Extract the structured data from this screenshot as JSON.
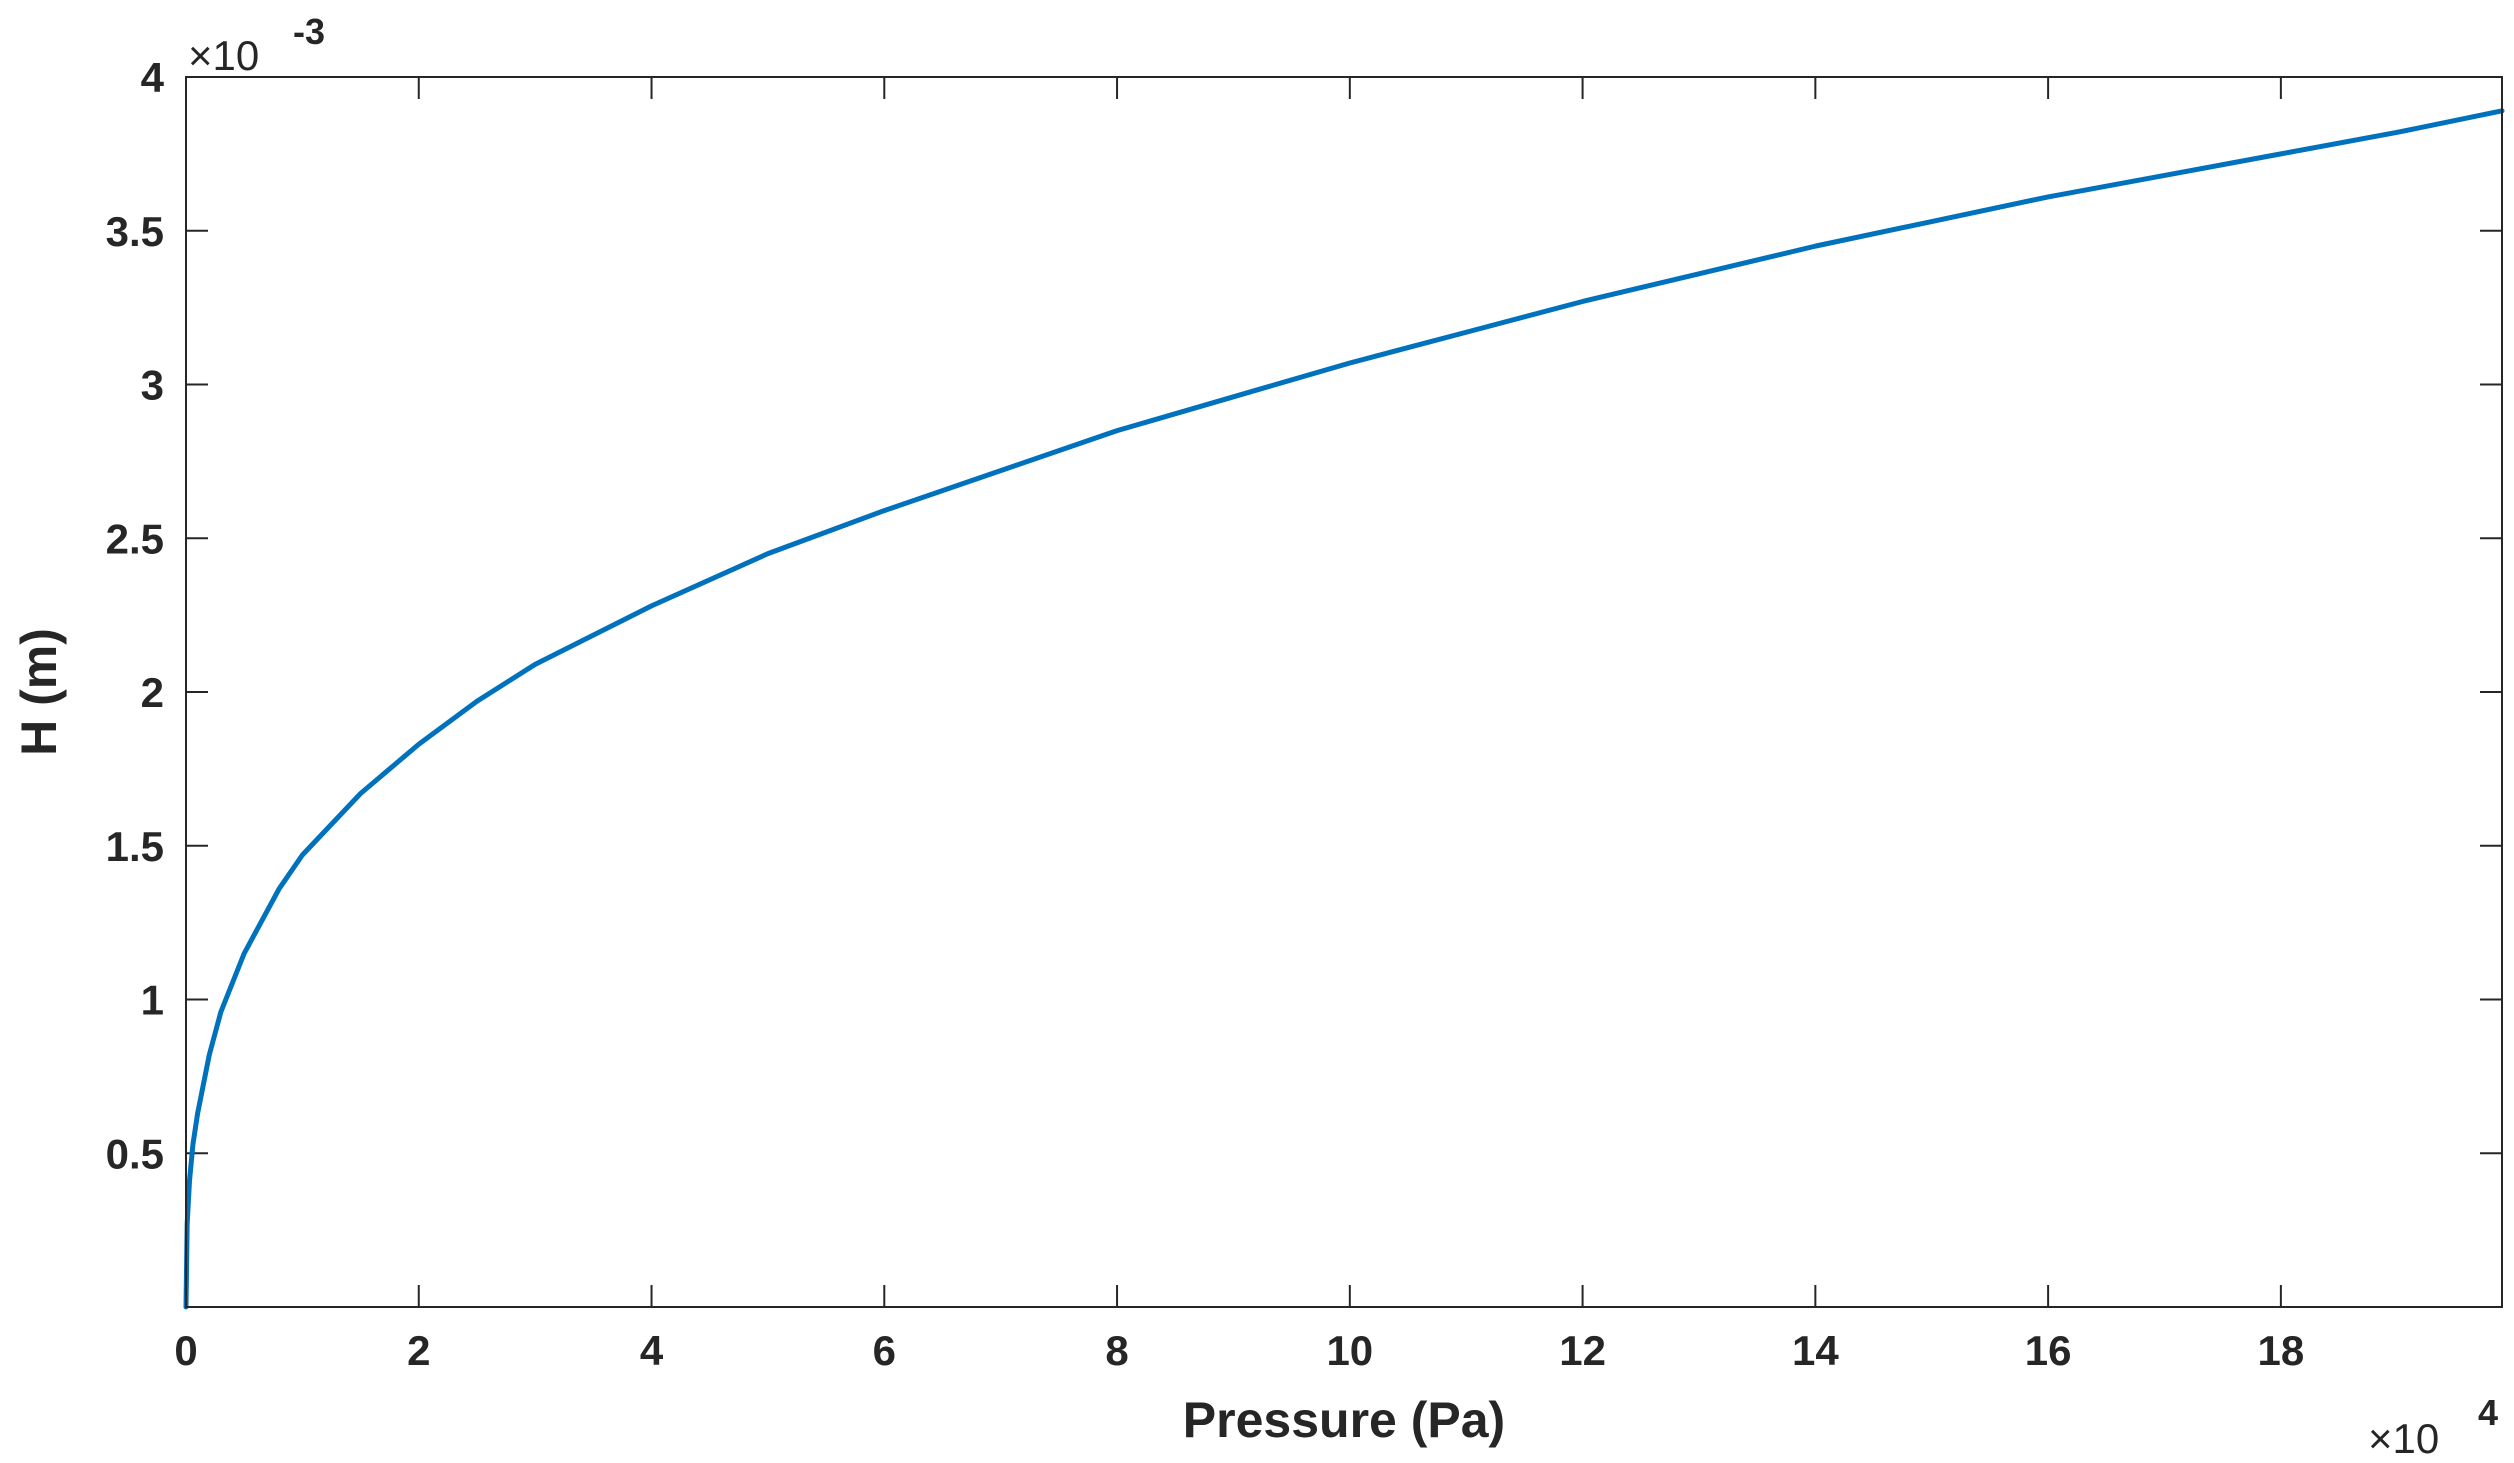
{
  "chart_data": {
    "type": "line",
    "title": "",
    "xlabel": "Pressure (Pa)",
    "ylabel": "H (m)",
    "x_multiplier": {
      "base": "×10",
      "exponent": "4"
    },
    "y_multiplier": {
      "base": "×10",
      "exponent": "-3"
    },
    "xlim": [
      0,
      199000
    ],
    "ylim": [
      0,
      0.004
    ],
    "xticks": [
      0,
      20000,
      40000,
      60000,
      80000,
      100000,
      120000,
      140000,
      160000,
      180000
    ],
    "xtick_labels": [
      "0",
      "2",
      "4",
      "6",
      "8",
      "10",
      "12",
      "14",
      "16",
      "18"
    ],
    "yticks": [
      0.0005,
      0.001,
      0.0015,
      0.002,
      0.0025,
      0.003,
      0.0035,
      0.004
    ],
    "ytick_labels": [
      "0.5",
      "1",
      "1.5",
      "2",
      "2.5",
      "3",
      "3.5",
      "4"
    ],
    "grid": false,
    "line_color": "#0072BD",
    "series": [
      {
        "x": [
          0,
          100,
          300,
          600,
          1000,
          2000,
          3000,
          5000,
          8000,
          10000,
          15000,
          20000,
          25000,
          30000,
          40000,
          50000,
          60000,
          70000,
          80000,
          90000,
          100000,
          110000,
          120000,
          130000,
          140000,
          150000,
          160000,
          170000,
          180000,
          190000,
          199000
        ],
        "y": [
          0,
          0.00027,
          0.00041,
          0.00053,
          0.00063,
          0.00082,
          0.00096,
          0.00115,
          0.00136,
          0.00147,
          0.00167,
          0.00183,
          0.00197,
          0.00209,
          0.00228,
          0.00245,
          0.00259,
          0.00272,
          0.00285,
          0.00296,
          0.00307,
          0.00317,
          0.00327,
          0.00336,
          0.00345,
          0.00353,
          0.00361,
          0.00368,
          0.00375,
          0.00382,
          0.00389
        ]
      }
    ]
  }
}
